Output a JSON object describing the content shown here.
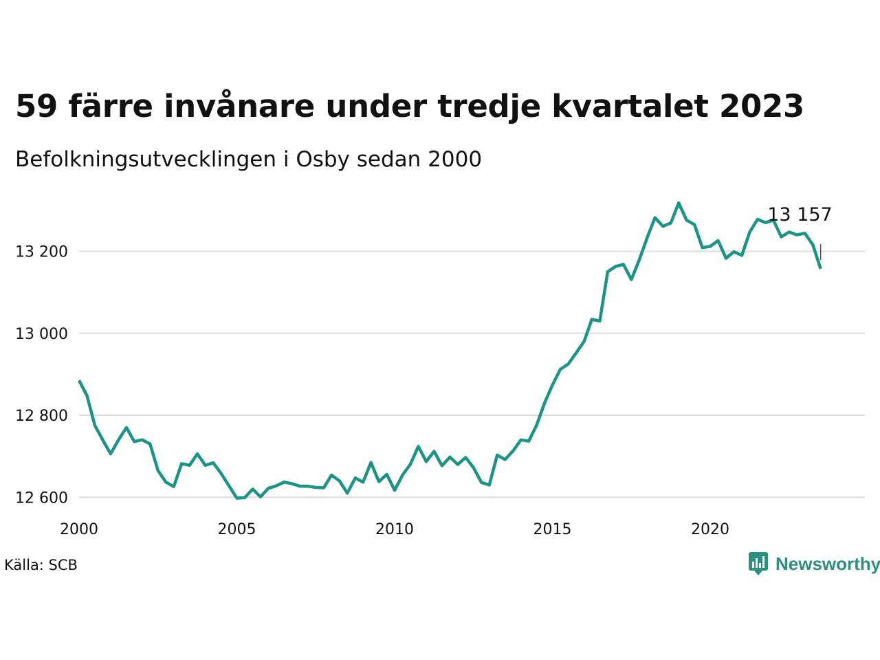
{
  "header": {
    "title": "59 färre invånare under tredje kvartalet 2023",
    "subtitle": "Befolkningsutvecklingen i Osby sedan 2000"
  },
  "footer": {
    "source": "Källa: SCB",
    "brand": "Newsworthy"
  },
  "colors": {
    "line": "#1a9485",
    "grid": "#dcdcdc",
    "brand": "#2f8f7e"
  },
  "icons": {
    "brand_logo": "newsworthy-chart-bubble-icon"
  },
  "chart_data": {
    "type": "line",
    "title": "59 färre invånare under tredje kvartalet 2023",
    "subtitle": "Befolkningsutvecklingen i Osby sedan 2000",
    "xlabel": "",
    "ylabel": "",
    "x_ticks": [
      2000,
      2005,
      2010,
      2015,
      2020
    ],
    "y_ticks": [
      12600,
      12800,
      13000,
      13200
    ],
    "y_tick_labels": [
      "12 600",
      "12 800",
      "13 000",
      "13 200"
    ],
    "xlim": [
      2000,
      2024.9
    ],
    "ylim": [
      12577,
      13335
    ],
    "grid": "horizontal",
    "end_label": "13 157",
    "series": [
      {
        "values": [
          [
            2000.0,
            12885
          ],
          [
            2000.25,
            12848
          ],
          [
            2000.5,
            12775
          ],
          [
            2000.75,
            12740
          ],
          [
            2001.0,
            12706
          ],
          [
            2001.25,
            12740
          ],
          [
            2001.5,
            12770
          ],
          [
            2001.75,
            12736
          ],
          [
            2002.0,
            12740
          ],
          [
            2002.25,
            12730
          ],
          [
            2002.5,
            12665
          ],
          [
            2002.75,
            12637
          ],
          [
            2003.0,
            12626
          ],
          [
            2003.25,
            12682
          ],
          [
            2003.5,
            12678
          ],
          [
            2003.75,
            12706
          ],
          [
            2004.0,
            12678
          ],
          [
            2004.25,
            12684
          ],
          [
            2004.5,
            12658
          ],
          [
            2004.75,
            12628
          ],
          [
            2005.0,
            12598
          ],
          [
            2005.25,
            12599
          ],
          [
            2005.5,
            12620
          ],
          [
            2005.75,
            12601
          ],
          [
            2006.0,
            12622
          ],
          [
            2006.25,
            12628
          ],
          [
            2006.5,
            12637
          ],
          [
            2006.75,
            12633
          ],
          [
            2007.0,
            12627
          ],
          [
            2007.25,
            12627
          ],
          [
            2007.5,
            12624
          ],
          [
            2007.75,
            12623
          ],
          [
            2008.0,
            12654
          ],
          [
            2008.25,
            12640
          ],
          [
            2008.5,
            12610
          ],
          [
            2008.75,
            12647
          ],
          [
            2009.0,
            12637
          ],
          [
            2009.25,
            12685
          ],
          [
            2009.5,
            12638
          ],
          [
            2009.75,
            12656
          ],
          [
            2010.0,
            12617
          ],
          [
            2010.25,
            12654
          ],
          [
            2010.5,
            12681
          ],
          [
            2010.75,
            12724
          ],
          [
            2011.0,
            12687
          ],
          [
            2011.25,
            12712
          ],
          [
            2011.5,
            12677
          ],
          [
            2011.75,
            12698
          ],
          [
            2012.0,
            12680
          ],
          [
            2012.25,
            12697
          ],
          [
            2012.5,
            12672
          ],
          [
            2012.75,
            12636
          ],
          [
            2013.0,
            12630
          ],
          [
            2013.25,
            12703
          ],
          [
            2013.5,
            12692
          ],
          [
            2013.75,
            12713
          ],
          [
            2014.0,
            12740
          ],
          [
            2014.25,
            12737
          ],
          [
            2014.5,
            12776
          ],
          [
            2014.75,
            12830
          ],
          [
            2015.0,
            12874
          ],
          [
            2015.25,
            12912
          ],
          [
            2015.5,
            12925
          ],
          [
            2015.75,
            12952
          ],
          [
            2016.0,
            12980
          ],
          [
            2016.25,
            13034
          ],
          [
            2016.5,
            13030
          ],
          [
            2016.75,
            13150
          ],
          [
            2017.0,
            13163
          ],
          [
            2017.25,
            13168
          ],
          [
            2017.5,
            13131
          ],
          [
            2017.75,
            13179
          ],
          [
            2018.0,
            13233
          ],
          [
            2018.25,
            13282
          ],
          [
            2018.5,
            13261
          ],
          [
            2018.75,
            13269
          ],
          [
            2019.0,
            13318
          ],
          [
            2019.25,
            13276
          ],
          [
            2019.5,
            13265
          ],
          [
            2019.75,
            13209
          ],
          [
            2020.0,
            13212
          ],
          [
            2020.25,
            13226
          ],
          [
            2020.5,
            13183
          ],
          [
            2020.75,
            13199
          ],
          [
            2021.0,
            13190
          ],
          [
            2021.25,
            13247
          ],
          [
            2021.5,
            13278
          ],
          [
            2021.75,
            13270
          ],
          [
            2022.0,
            13276
          ],
          [
            2022.25,
            13235
          ],
          [
            2022.5,
            13247
          ],
          [
            2022.75,
            13240
          ],
          [
            2023.0,
            13244
          ],
          [
            2023.25,
            13216
          ],
          [
            2023.5,
            13157
          ]
        ]
      }
    ]
  }
}
